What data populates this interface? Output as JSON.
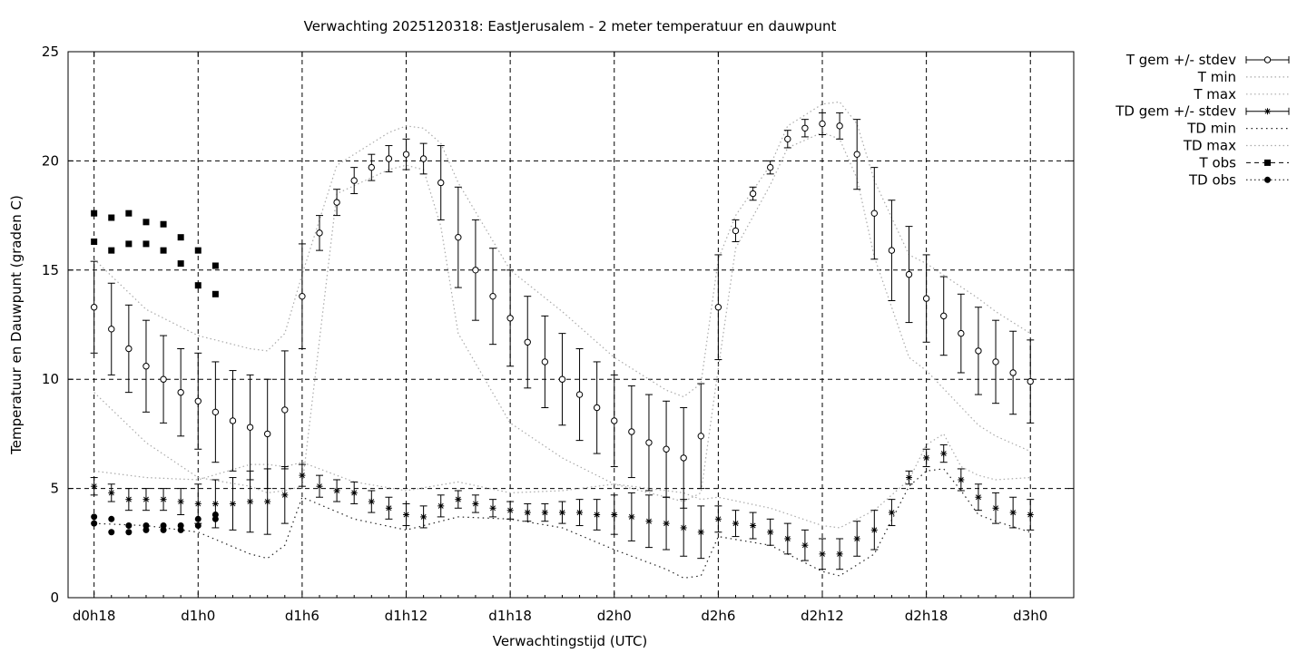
{
  "chart_data": {
    "type": "line",
    "title": "Verwachting 2025120318: EastJerusalem - 2 meter temperatuur en dauwpunt",
    "xlabel": "Verwachtingstijd (UTC)",
    "ylabel": "Temperatuur en Dauwpunt (graden C)",
    "xlim": [
      -1.5,
      56.5
    ],
    "ylim": [
      0,
      25
    ],
    "grid": true,
    "legend_position": "outside-right",
    "x_ticks": [
      {
        "x": 0,
        "label": "d0h18"
      },
      {
        "x": 6,
        "label": "d1h0"
      },
      {
        "x": 12,
        "label": "d1h6"
      },
      {
        "x": 18,
        "label": "d1h12"
      },
      {
        "x": 24,
        "label": "d1h18"
      },
      {
        "x": 30,
        "label": "d2h0"
      },
      {
        "x": 36,
        "label": "d2h6"
      },
      {
        "x": 42,
        "label": "d2h12"
      },
      {
        "x": 48,
        "label": "d2h18"
      },
      {
        "x": 54,
        "label": "d3h0"
      }
    ],
    "y_ticks": [
      0,
      5,
      10,
      15,
      20,
      25
    ],
    "legend": [
      "T gem +/- stdev",
      "T min",
      "T max",
      "TD gem +/- stdev",
      "TD min",
      "TD max",
      "T obs",
      "TD obs"
    ],
    "series": [
      {
        "name": "T gem +/- stdev",
        "marker": "open-circle",
        "x": [
          0,
          1,
          2,
          3,
          4,
          5,
          6,
          7,
          8,
          9,
          10,
          11,
          12,
          13,
          14,
          15,
          16,
          17,
          18,
          19,
          20,
          21,
          22,
          23,
          24,
          25,
          26,
          27,
          28,
          29,
          30,
          31,
          32,
          33,
          34,
          35,
          36,
          37,
          38,
          39,
          40,
          41,
          42,
          43,
          44,
          45,
          46,
          47,
          48,
          49,
          50,
          51,
          52,
          53,
          54
        ],
        "mean": [
          13.3,
          12.3,
          11.4,
          10.6,
          10.0,
          9.4,
          9.0,
          8.5,
          8.1,
          7.8,
          7.5,
          8.6,
          13.8,
          16.7,
          18.1,
          19.1,
          19.7,
          20.1,
          20.3,
          20.1,
          19.0,
          16.5,
          15.0,
          13.8,
          12.8,
          11.7,
          10.8,
          10.0,
          9.3,
          8.7,
          8.1,
          7.6,
          7.1,
          6.8,
          6.4,
          7.4,
          13.3,
          16.8,
          18.5,
          19.7,
          21.0,
          21.5,
          21.7,
          21.6,
          20.3,
          17.6,
          15.9,
          14.8,
          13.7,
          12.9,
          12.1,
          11.3,
          10.8,
          10.3,
          9.9
        ],
        "stdev": [
          2.1,
          2.1,
          2.0,
          2.1,
          2.0,
          2.0,
          2.2,
          2.3,
          2.3,
          2.4,
          2.5,
          2.7,
          2.4,
          0.8,
          0.6,
          0.6,
          0.6,
          0.6,
          0.7,
          0.7,
          1.7,
          2.3,
          2.3,
          2.2,
          2.2,
          2.1,
          2.1,
          2.1,
          2.1,
          2.1,
          2.1,
          2.1,
          2.2,
          2.2,
          2.3,
          2.4,
          2.4,
          0.5,
          0.3,
          0.3,
          0.4,
          0.4,
          0.5,
          0.6,
          1.6,
          2.1,
          2.3,
          2.2,
          2.0,
          1.8,
          1.8,
          2.0,
          1.9,
          1.9,
          1.9
        ]
      },
      {
        "name": "T min",
        "style": "dotted",
        "x": [
          0,
          3,
          6,
          9,
          10,
          11,
          12,
          14,
          17,
          18,
          19,
          20,
          21,
          24,
          27,
          30,
          33,
          34,
          35,
          36,
          37,
          39,
          40,
          42,
          43,
          44,
          45,
          47,
          48,
          51,
          52,
          54
        ],
        "values": [
          9.4,
          7.1,
          5.5,
          5.1,
          4.8,
          4.9,
          5.1,
          18.5,
          19.6,
          19.8,
          19.6,
          17.0,
          12.1,
          8.0,
          6.4,
          5.2,
          4.6,
          4.4,
          4.8,
          10.5,
          16.0,
          18.9,
          20.6,
          21.3,
          21.0,
          19.2,
          15.6,
          11.0,
          10.4,
          7.9,
          7.4,
          6.7
        ]
      },
      {
        "name": "T max",
        "style": "dotted",
        "x": [
          0,
          3,
          6,
          9,
          10,
          11,
          12,
          14,
          17,
          18,
          19,
          20,
          21,
          24,
          27,
          30,
          33,
          34,
          35,
          36,
          37,
          39,
          40,
          42,
          43,
          44,
          45,
          47,
          48,
          51,
          52,
          54
        ],
        "values": [
          15.5,
          13.2,
          12.0,
          11.4,
          11.3,
          12.1,
          14.8,
          19.8,
          21.3,
          21.6,
          21.5,
          20.8,
          19.0,
          15.0,
          13.1,
          11.0,
          9.5,
          9.2,
          9.8,
          15.5,
          17.5,
          19.8,
          21.6,
          22.6,
          22.7,
          21.7,
          19.1,
          15.7,
          15.3,
          13.7,
          13.1,
          12.1
        ]
      },
      {
        "name": "TD gem +/- stdev",
        "marker": "asterisk",
        "x": [
          0,
          1,
          2,
          3,
          4,
          5,
          6,
          7,
          8,
          9,
          10,
          11,
          12,
          13,
          14,
          15,
          16,
          17,
          18,
          19,
          20,
          21,
          22,
          23,
          24,
          25,
          26,
          27,
          28,
          29,
          30,
          31,
          32,
          33,
          34,
          35,
          36,
          37,
          38,
          39,
          40,
          41,
          42,
          43,
          44,
          45,
          46,
          47,
          48,
          49,
          50,
          51,
          52,
          53,
          54
        ],
        "mean": [
          5.1,
          4.8,
          4.5,
          4.5,
          4.5,
          4.4,
          4.3,
          4.3,
          4.3,
          4.4,
          4.4,
          4.7,
          5.6,
          5.1,
          4.9,
          4.8,
          4.4,
          4.1,
          3.8,
          3.7,
          4.2,
          4.5,
          4.3,
          4.1,
          4.0,
          3.9,
          3.9,
          3.9,
          3.9,
          3.8,
          3.8,
          3.7,
          3.5,
          3.4,
          3.2,
          3.0,
          3.6,
          3.4,
          3.3,
          3.0,
          2.7,
          2.4,
          2.0,
          2.0,
          2.7,
          3.1,
          3.9,
          5.5,
          6.4,
          6.6,
          5.4,
          4.6,
          4.1,
          3.9,
          3.8
        ],
        "stdev": [
          0.4,
          0.4,
          0.5,
          0.5,
          0.5,
          0.6,
          0.9,
          1.1,
          1.2,
          1.4,
          1.5,
          1.3,
          0.5,
          0.5,
          0.5,
          0.5,
          0.5,
          0.5,
          0.5,
          0.5,
          0.5,
          0.4,
          0.4,
          0.4,
          0.4,
          0.4,
          0.4,
          0.5,
          0.6,
          0.7,
          0.9,
          1.1,
          1.2,
          1.2,
          1.3,
          1.2,
          0.6,
          0.6,
          0.6,
          0.6,
          0.7,
          0.7,
          0.7,
          0.7,
          0.8,
          0.9,
          0.6,
          0.3,
          0.4,
          0.4,
          0.5,
          0.6,
          0.7,
          0.7,
          0.7
        ]
      },
      {
        "name": "TD min",
        "style": "dotted",
        "x": [
          0,
          3,
          6,
          9,
          10,
          11,
          12,
          15,
          18,
          21,
          24,
          27,
          30,
          33,
          34,
          35,
          36,
          39,
          42,
          43,
          45,
          47,
          48,
          49,
          50,
          51,
          52,
          54
        ],
        "values": [
          3.4,
          3.3,
          3.0,
          2.0,
          1.8,
          2.4,
          4.6,
          3.6,
          3.1,
          3.7,
          3.6,
          3.2,
          2.2,
          1.3,
          0.9,
          1.0,
          2.8,
          2.4,
          1.2,
          1.0,
          2.0,
          5.1,
          5.8,
          5.9,
          4.9,
          3.8,
          3.5,
          3.0
        ]
      },
      {
        "name": "TD max",
        "style": "dotted",
        "x": [
          0,
          3,
          6,
          9,
          10,
          11,
          12,
          15,
          18,
          21,
          24,
          27,
          30,
          33,
          34,
          35,
          36,
          39,
          42,
          43,
          45,
          47,
          48,
          49,
          50,
          51,
          52,
          54
        ],
        "values": [
          5.8,
          5.5,
          5.4,
          6.1,
          6.1,
          6.0,
          6.2,
          5.3,
          4.9,
          5.3,
          4.8,
          4.9,
          5.2,
          4.9,
          4.8,
          4.5,
          4.6,
          4.1,
          3.3,
          3.2,
          4.0,
          5.4,
          7.0,
          7.5,
          6.0,
          5.6,
          5.4,
          5.5
        ]
      },
      {
        "name": "T obs",
        "marker": "filled-square",
        "x": [
          0,
          0,
          1,
          1,
          2,
          2,
          3,
          3,
          4,
          4,
          5,
          5,
          6,
          6,
          7,
          7
        ],
        "values": [
          17.6,
          16.3,
          17.4,
          15.9,
          17.6,
          16.2,
          17.2,
          16.2,
          17.1,
          15.9,
          16.5,
          15.3,
          15.9,
          14.3,
          15.2,
          13.9
        ]
      },
      {
        "name": "TD obs",
        "marker": "filled-circle",
        "x": [
          0,
          0,
          1,
          1,
          2,
          2,
          3,
          3,
          4,
          4,
          5,
          5,
          6,
          6,
          7,
          7
        ],
        "values": [
          3.7,
          3.4,
          3.6,
          3.0,
          3.3,
          3.0,
          3.3,
          3.1,
          3.3,
          3.1,
          3.3,
          3.1,
          3.6,
          3.3,
          3.8,
          3.6
        ]
      }
    ]
  }
}
